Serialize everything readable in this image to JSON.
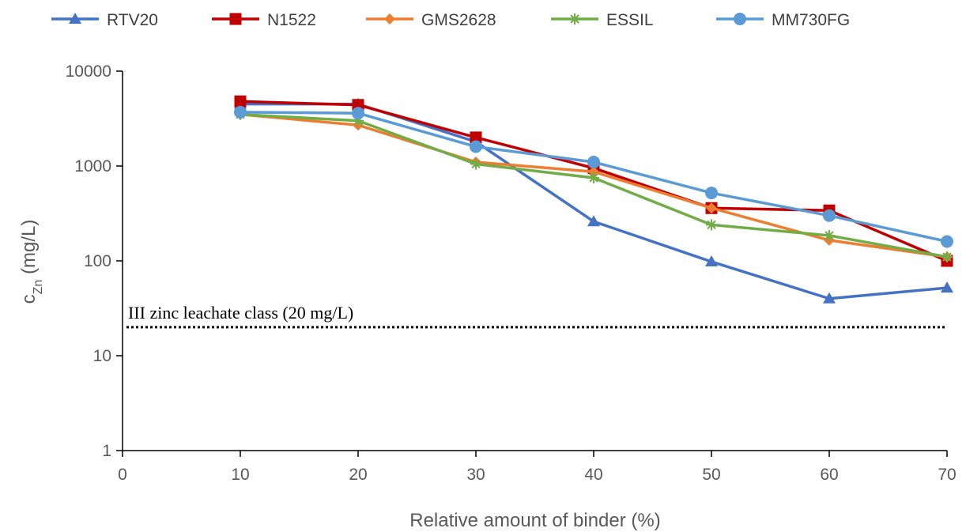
{
  "chart_data": {
    "type": "line",
    "xlabel": "Relative amount of binder (%)",
    "ylabel_main": "c",
    "ylabel_sub": "Zn",
    "ylabel_unit": " (mg/L)",
    "xlim": [
      0,
      70
    ],
    "ylim": [
      1,
      10000
    ],
    "yscale": "log",
    "xticks": [
      0,
      10,
      20,
      30,
      40,
      50,
      60,
      70
    ],
    "yticks": [
      1,
      10,
      100,
      1000,
      10000
    ],
    "x": [
      10,
      20,
      30,
      40,
      50,
      60,
      70
    ],
    "grid": false,
    "legend_position": "top",
    "series": [
      {
        "name": "RTV20",
        "color": "#4472C4",
        "marker": "triangle",
        "values": [
          4500,
          4500,
          1800,
          260,
          98,
          40,
          52
        ]
      },
      {
        "name": "N1522",
        "color": "#C00000",
        "marker": "square",
        "values": [
          4800,
          4400,
          2000,
          950,
          360,
          340,
          100
        ]
      },
      {
        "name": "GMS2628",
        "color": "#ED7D31",
        "marker": "diamond",
        "values": [
          3500,
          2700,
          1100,
          870,
          360,
          165,
          110
        ]
      },
      {
        "name": "ESSIL",
        "color": "#70AD47",
        "marker": "asterisk",
        "values": [
          3500,
          3000,
          1050,
          750,
          240,
          185,
          110
        ]
      },
      {
        "name": "MM730FG",
        "color": "#5B9BD5",
        "marker": "circle",
        "values": [
          3700,
          3600,
          1600,
          1100,
          520,
          300,
          160
        ]
      }
    ],
    "reference_line": {
      "value": 20,
      "label": "III zinc leachate class (20 mg/L)",
      "style": "dotted",
      "color": "#000000"
    }
  }
}
